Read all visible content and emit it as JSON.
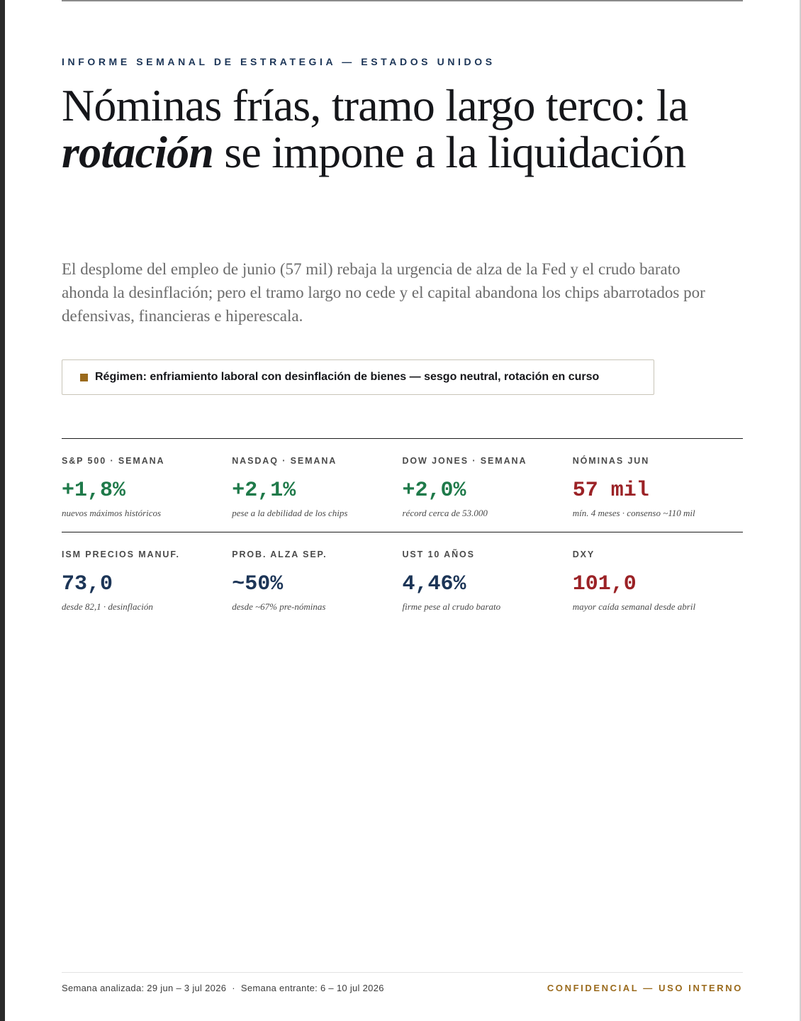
{
  "header": {
    "kicker": "INFORME SEMANAL DE ESTRATEGIA — ESTADOS UNIDOS",
    "headline_part1": "Nóminas frías, tramo largo terco: la ",
    "headline_emphasis": "rotación",
    "headline_part2": " se impone a la liquidación",
    "dek": "El desplome del empleo de junio (57 mil) rebaja la urgencia de alza de la Fed y el crudo barato ahonda la desinflación; pero el tramo largo no cede y el capital abandona los chips abarrotados por defensivas, financieras e hiperescala."
  },
  "regime": {
    "text": "Régimen: enfriamiento laboral con desinflación de bienes — sesgo neutral, rotación en curso",
    "marker_color": "#9a6a1c"
  },
  "colors": {
    "positive": "#1f7a4a",
    "negative": "#9b2226",
    "neutral": "#1c3557",
    "accent": "#9a6a1c"
  },
  "stats": [
    [
      {
        "label": "S&P 500 · SEMANA",
        "value": "+1,8%",
        "tone": "positive",
        "note": "nuevos máximos históricos"
      },
      {
        "label": "NASDAQ · SEMANA",
        "value": "+2,1%",
        "tone": "positive",
        "note": "pese a la debilidad de los chips"
      },
      {
        "label": "DOW JONES · SEMANA",
        "value": "+2,0%",
        "tone": "positive",
        "note": "récord cerca de 53.000"
      },
      {
        "label": "NÓMINAS JUN",
        "value": "57 mil",
        "tone": "negative",
        "note": "mín. 4 meses · consenso ~110 mil"
      }
    ],
    [
      {
        "label": "ISM PRECIOS MANUF.",
        "value": "73,0",
        "tone": "neutral",
        "note": "desde 82,1 · desinflación"
      },
      {
        "label": "PROB. ALZA SEP.",
        "value": "~50%",
        "tone": "neutral",
        "note": "desde ~67% pre-nóminas"
      },
      {
        "label": "UST 10 AÑOS",
        "value": "4,46%",
        "tone": "neutral",
        "note": "firme pese al crudo barato"
      },
      {
        "label": "DXY",
        "value": "101,0",
        "tone": "negative",
        "note": "mayor caída semanal desde abril"
      }
    ]
  ],
  "footer": {
    "analyzed": "Semana analizada: 29 jun – 3 jul 2026",
    "separator": "·",
    "upcoming": "Semana entrante: 6 – 10 jul 2026",
    "confidential": "CONFIDENCIAL — USO INTERNO"
  }
}
